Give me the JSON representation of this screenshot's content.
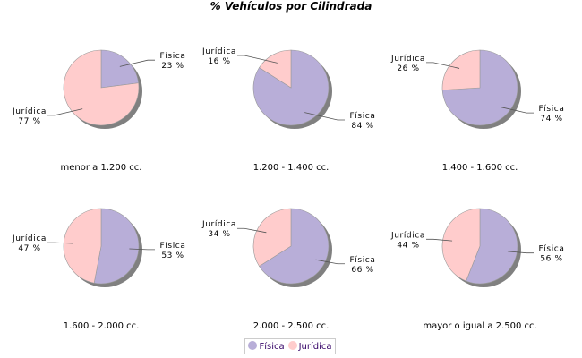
{
  "chart_data": [
    {
      "type": "pie",
      "subtitle": "menor a 1.200 cc.",
      "slices": [
        {
          "label": "Física",
          "value": 23
        },
        {
          "label": "Jurídica",
          "value": 77
        }
      ]
    },
    {
      "type": "pie",
      "subtitle": "1.200 - 1.400 cc.",
      "slices": [
        {
          "label": "Física",
          "value": 84
        },
        {
          "label": "Jurídica",
          "value": 16
        }
      ]
    },
    {
      "type": "pie",
      "subtitle": "1.400 - 1.600 cc.",
      "slices": [
        {
          "label": "Física",
          "value": 74
        },
        {
          "label": "Jurídica",
          "value": 26
        }
      ]
    },
    {
      "type": "pie",
      "subtitle": "1.600 - 2.000 cc.",
      "slices": [
        {
          "label": "Física",
          "value": 53
        },
        {
          "label": "Jurídica",
          "value": 47
        }
      ]
    },
    {
      "type": "pie",
      "subtitle": "2.000 - 2.500 cc.",
      "slices": [
        {
          "label": "Física",
          "value": 66
        },
        {
          "label": "Jurídica",
          "value": 34
        }
      ]
    },
    {
      "type": "pie",
      "subtitle": "mayor o igual a 2.500 cc.",
      "slices": [
        {
          "label": "Física",
          "value": 56
        },
        {
          "label": "Jurídica",
          "value": 44
        }
      ]
    }
  ],
  "title": "% Vehículos por Cilindrada",
  "unit": "%",
  "legend": {
    "placement": "bottom",
    "items": [
      {
        "label": "Física",
        "color": "#b8aed8"
      },
      {
        "label": "Jurídica",
        "color": "#ffcccc"
      }
    ]
  },
  "colors": {
    "Física": "#b8aed8",
    "Jurídica": "#ffcccc",
    "shadow": "#808080"
  }
}
